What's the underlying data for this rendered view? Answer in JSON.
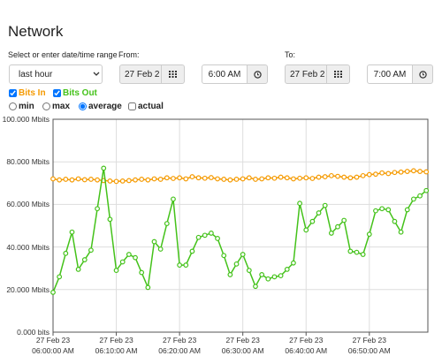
{
  "header": {
    "title": "Network"
  },
  "controls": {
    "range_label": "Select or enter date/time range",
    "range_value": "last hour",
    "from_label": "From:",
    "from_date": "27 Feb 2",
    "from_time": "6:00 AM",
    "to_label": "To:",
    "to_date": "27 Feb 2",
    "to_time": "7:00 AM",
    "options": [
      "min",
      "max",
      "average"
    ],
    "selected_option": "average",
    "actual_label": "actual"
  },
  "chart_data": {
    "type": "line",
    "x": [
      "2023-02-27T06:00:00",
      "2023-02-27T06:01:00",
      "2023-02-27T06:02:00",
      "2023-02-27T06:03:00",
      "2023-02-27T06:04:00",
      "2023-02-27T06:05:00",
      "2023-02-27T06:06:00",
      "2023-02-27T06:07:00",
      "2023-02-27T06:08:00",
      "2023-02-27T06:09:00",
      "2023-02-27T06:10:00",
      "2023-02-27T06:11:00",
      "2023-02-27T06:12:00",
      "2023-02-27T06:13:00",
      "2023-02-27T06:14:00",
      "2023-02-27T06:15:00",
      "2023-02-27T06:16:00",
      "2023-02-27T06:17:00",
      "2023-02-27T06:18:00",
      "2023-02-27T06:19:00",
      "2023-02-27T06:20:00",
      "2023-02-27T06:21:00",
      "2023-02-27T06:22:00",
      "2023-02-27T06:23:00",
      "2023-02-27T06:24:00",
      "2023-02-27T06:25:00",
      "2023-02-27T06:26:00",
      "2023-02-27T06:27:00",
      "2023-02-27T06:28:00",
      "2023-02-27T06:29:00",
      "2023-02-27T06:30:00",
      "2023-02-27T06:31:00",
      "2023-02-27T06:32:00",
      "2023-02-27T06:33:00",
      "2023-02-27T06:34:00",
      "2023-02-27T06:35:00",
      "2023-02-27T06:36:00",
      "2023-02-27T06:37:00",
      "2023-02-27T06:38:00",
      "2023-02-27T06:39:00",
      "2023-02-27T06:40:00",
      "2023-02-27T06:41:00",
      "2023-02-27T06:42:00",
      "2023-02-27T06:43:00",
      "2023-02-27T06:44:00",
      "2023-02-27T06:45:00",
      "2023-02-27T06:46:00",
      "2023-02-27T06:47:00",
      "2023-02-27T06:48:00",
      "2023-02-27T06:49:00",
      "2023-02-27T06:50:00",
      "2023-02-27T06:51:00",
      "2023-02-27T06:52:00",
      "2023-02-27T06:53:00",
      "2023-02-27T06:54:00",
      "2023-02-27T06:55:00",
      "2023-02-27T06:56:00",
      "2023-02-27T06:57:00",
      "2023-02-27T06:58:00",
      "2023-02-27T06:59:00"
    ],
    "series": [
      {
        "name": "Bits In",
        "color": "#f59a00",
        "values": [
          72,
          71.5,
          71.8,
          71.5,
          72,
          71.6,
          71.8,
          71.5,
          71.2,
          71,
          70.8,
          71,
          71.2,
          71.5,
          71.8,
          71.5,
          72,
          71.8,
          72.5,
          72.2,
          72.5,
          72,
          73,
          72.5,
          72.3,
          72.6,
          72,
          71.8,
          71.5,
          71.8,
          72,
          72.5,
          71.8,
          72,
          72.5,
          72.3,
          72.8,
          72.5,
          72,
          72.3,
          72.5,
          72.2,
          72.8,
          73,
          73.5,
          73.2,
          72.8,
          72.5,
          72.8,
          73.5,
          74,
          74.2,
          74.8,
          74.5,
          75,
          75.2,
          75.5,
          75.8,
          75.5,
          75.3
        ]
      },
      {
        "name": "Bits Out",
        "color": "#44c21a",
        "values": [
          18.7,
          26,
          37,
          47,
          29.5,
          34,
          38.5,
          58,
          77,
          53,
          29,
          33,
          36.5,
          35,
          28,
          21,
          42.5,
          39,
          51,
          62.5,
          31.5,
          31.5,
          38,
          44.5,
          45.5,
          46.5,
          44,
          36,
          27,
          32,
          36.5,
          29,
          21.5,
          27,
          25,
          26,
          26.5,
          29.5,
          32.5,
          60.5,
          48,
          52,
          56,
          59.5,
          46.5,
          49.5,
          52.5,
          38,
          37.5,
          36.5,
          46,
          57,
          58,
          57.5,
          52,
          47,
          57.5,
          62.5,
          64,
          66.5
        ]
      }
    ],
    "xlim": [
      "2023-02-27T06:00:00",
      "2023-02-27T06:59:15"
    ],
    "xticks": [
      {
        "value": "2023-02-27T06:00:00",
        "label": "27 Feb 23\n06:00:00 AM"
      },
      {
        "value": "2023-02-27T06:10:00",
        "label": "27 Feb 23\n06:10:00 AM"
      },
      {
        "value": "2023-02-27T06:20:00",
        "label": "27 Feb 23\n06:20:00 AM"
      },
      {
        "value": "2023-02-27T06:30:00",
        "label": "27 Feb 23\n06:30:00 AM"
      },
      {
        "value": "2023-02-27T06:40:00",
        "label": "27 Feb 23\n06:40:00 AM"
      },
      {
        "value": "2023-02-27T06:50:00",
        "label": "27 Feb 23\n06:50:00 AM"
      }
    ],
    "ylim": [
      0,
      100
    ],
    "yticks": [
      {
        "value": 0,
        "label": "0.000 bits"
      },
      {
        "value": 20,
        "label": "20.000 Mbits"
      },
      {
        "value": 40,
        "label": "40.000 Mbits"
      },
      {
        "value": 60,
        "label": "60.000 Mbits"
      },
      {
        "value": 80,
        "label": "80.000 Mbits"
      },
      {
        "value": 100,
        "label": "100.000 Mbits"
      }
    ],
    "grid": true
  }
}
